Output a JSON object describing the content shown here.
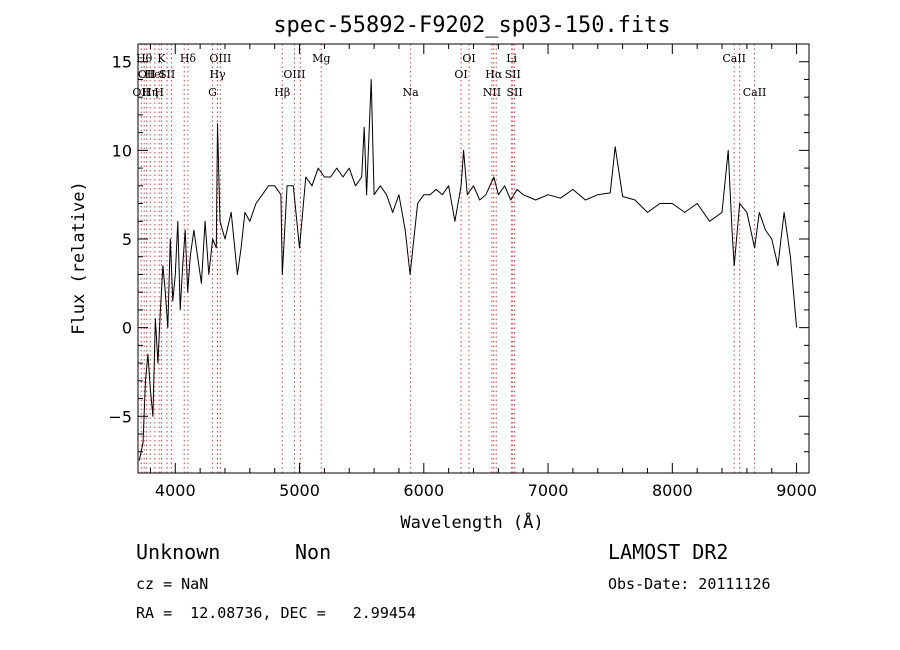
{
  "chart_data": {
    "type": "line",
    "title": "spec-55892-F9202_sp03-150.fits",
    "xlabel": "Wavelength (Å)",
    "ylabel": "Flux (relative)",
    "xlim": [
      3700,
      9100
    ],
    "ylim": [
      -8.2,
      16
    ],
    "x_ticks": [
      4000,
      5000,
      6000,
      7000,
      8000,
      9000
    ],
    "y_ticks": [
      -5,
      0,
      5,
      10,
      15
    ],
    "grid": false,
    "line_color": "#000000",
    "marker_color": "#d94040",
    "series": [
      {
        "x": [
          3710,
          3740,
          3760,
          3780,
          3800,
          3820,
          3840,
          3860,
          3880,
          3900,
          3920,
          3940,
          3960,
          3980,
          4000,
          4020,
          4040,
          4060,
          4080,
          4100,
          4120,
          4150,
          4180,
          4210,
          4240,
          4270,
          4300,
          4330,
          4340,
          4360,
          4400,
          4450,
          4500,
          4530,
          4560,
          4600,
          4650,
          4700,
          4750,
          4800,
          4850,
          4861,
          4900,
          4950,
          5000,
          5050,
          5100,
          5150,
          5200,
          5250,
          5300,
          5350,
          5400,
          5450,
          5500,
          5520,
          5540,
          5577,
          5600,
          5650,
          5700,
          5750,
          5800,
          5850,
          5890,
          5950,
          6000,
          6050,
          6100,
          6150,
          6200,
          6250,
          6300,
          6320,
          6350,
          6400,
          6450,
          6500,
          6563,
          6600,
          6650,
          6700,
          6750,
          6800,
          6900,
          7000,
          7100,
          7200,
          7300,
          7400,
          7500,
          7540,
          7600,
          7700,
          7800,
          7900,
          8000,
          8100,
          8200,
          8300,
          8400,
          8450,
          8480,
          8498,
          8542,
          8600,
          8662,
          8700,
          8750,
          8800,
          8850,
          8900,
          8950,
          9000
        ],
        "y": [
          -7.5,
          -6.5,
          -3,
          -1.5,
          -3.5,
          -5,
          0.5,
          -2,
          1,
          3.5,
          2,
          0,
          5,
          1.5,
          3,
          6,
          1,
          3.5,
          5.5,
          2,
          4,
          5.5,
          4,
          2.5,
          6,
          3,
          5,
          4.5,
          11.5,
          6,
          5,
          6.5,
          3,
          4.5,
          6.5,
          6,
          7,
          7.5,
          8,
          8,
          7.5,
          3,
          8,
          8,
          4.5,
          8.5,
          8,
          9,
          8.5,
          8.5,
          9,
          8.5,
          9,
          8,
          8.5,
          11.3,
          7.5,
          14,
          7.5,
          8,
          7.5,
          6.5,
          7.5,
          5.5,
          3,
          7,
          7.5,
          7.5,
          7.8,
          7.5,
          8,
          6,
          8,
          10,
          7.5,
          8,
          7.2,
          7.5,
          8.5,
          7.5,
          8,
          7.2,
          7.8,
          7.5,
          7.2,
          7.5,
          7.3,
          7.8,
          7.2,
          7.5,
          7.6,
          10.2,
          7.4,
          7.2,
          6.5,
          7.0,
          7.0,
          6.5,
          7.0,
          6.0,
          6.5,
          10,
          5.5,
          3.5,
          7.0,
          6.5,
          4.5,
          6.5,
          5.5,
          5.0,
          3.5,
          6.5,
          4.0,
          0
        ]
      }
    ],
    "lines": [
      {
        "x": 3726,
        "label": "OII",
        "row": 2
      },
      {
        "x": 3750,
        "label": "Hθ",
        "row": 0
      },
      {
        "x": 3770,
        "label": "OII",
        "row": 1
      },
      {
        "x": 3798,
        "label": "Hη",
        "row": 2
      },
      {
        "x": 3835,
        "label": "HeI",
        "row": 1
      },
      {
        "x": 3870,
        "label": "H",
        "row": 2
      },
      {
        "x": 3889,
        "label": "K",
        "row": 0
      },
      {
        "x": 3934,
        "label": "SII",
        "row": 1
      },
      {
        "x": 3969,
        "label": "",
        "row": 0
      },
      {
        "x": 4072,
        "label": "",
        "row": 0
      },
      {
        "x": 4102,
        "label": "Hδ",
        "row": 0
      },
      {
        "x": 4300,
        "label": "G",
        "row": 2
      },
      {
        "x": 4340,
        "label": "Hγ",
        "row": 1
      },
      {
        "x": 4363,
        "label": "OIII",
        "row": 0
      },
      {
        "x": 4861,
        "label": "Hβ",
        "row": 2
      },
      {
        "x": 4959,
        "label": "OIII",
        "row": 1
      },
      {
        "x": 5007,
        "label": "",
        "row": 0
      },
      {
        "x": 5175,
        "label": "Mg",
        "row": 0
      },
      {
        "x": 5894,
        "label": "Na",
        "row": 2
      },
      {
        "x": 6300,
        "label": "OI",
        "row": 1
      },
      {
        "x": 6364,
        "label": "OI",
        "row": 0
      },
      {
        "x": 6548,
        "label": "NII",
        "row": 2
      },
      {
        "x": 6563,
        "label": "Hα",
        "row": 1
      },
      {
        "x": 6583,
        "label": "",
        "row": 0
      },
      {
        "x": 6707,
        "label": "Li",
        "row": 0
      },
      {
        "x": 6716,
        "label": "SII",
        "row": 1
      },
      {
        "x": 6731,
        "label": "SII",
        "row": 2
      },
      {
        "x": 8498,
        "label": "CaII",
        "row": 0
      },
      {
        "x": 8542,
        "label": "",
        "row": 0
      },
      {
        "x": 8662,
        "label": "CaII",
        "row": 2
      }
    ]
  },
  "info": {
    "class": "Unknown",
    "subclass": "Non",
    "survey": "LAMOST DR2",
    "cz": "cz = NaN",
    "obs_date": "Obs-Date: 20111126",
    "coords": "RA =  12.08736, DEC =   2.99454"
  }
}
